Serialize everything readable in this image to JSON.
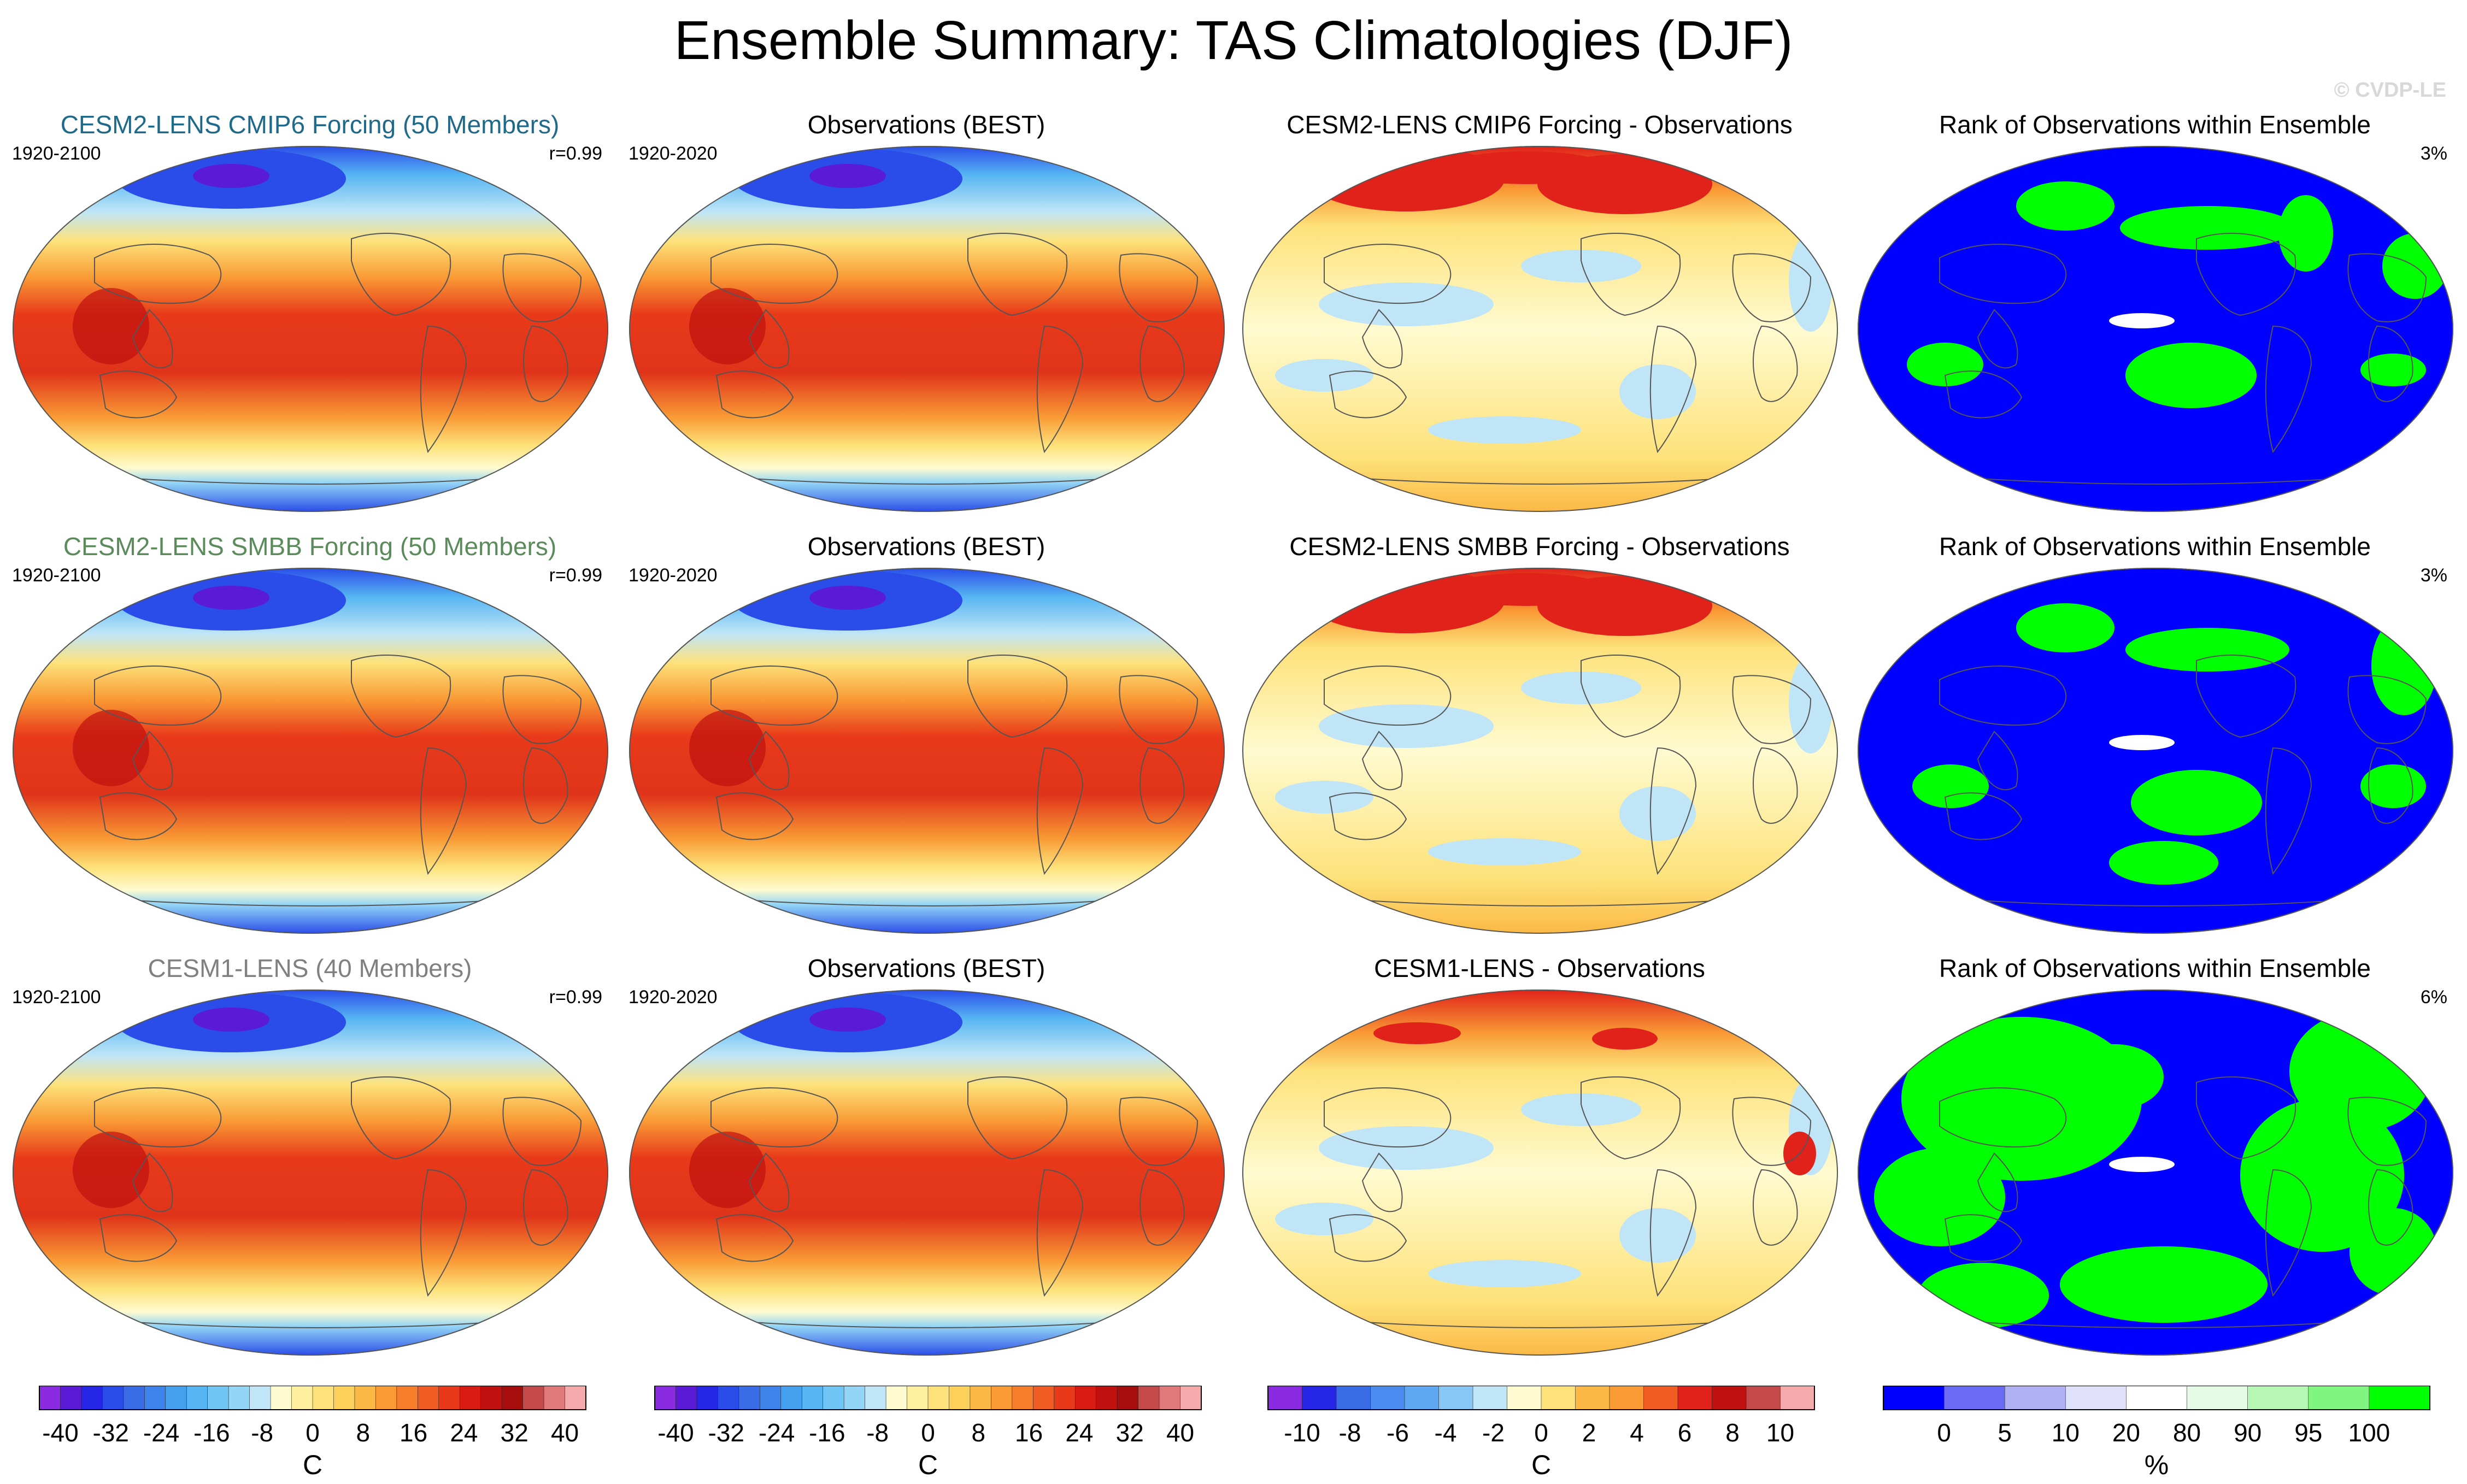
{
  "title": "Ensemble Summary: TAS Climatologies (DJF)",
  "watermark": "© CVDP-LE",
  "rows": [
    {
      "model": {
        "title": "CESM2-LENS CMIP6 Forcing (50 Members)",
        "title_color": "#1f6a8a",
        "period": "1920-2100",
        "corr": "r=0.99"
      },
      "obs": {
        "title": "Observations (BEST)",
        "period": "1920-2020"
      },
      "diff": {
        "title": "CESM2-LENS CMIP6 Forcing - Observations"
      },
      "rank": {
        "title": "Rank of Observations within Ensemble",
        "pct": "3%"
      }
    },
    {
      "model": {
        "title": "CESM2-LENS SMBB Forcing (50 Members)",
        "title_color": "#5b8a5b",
        "period": "1920-2100",
        "corr": "r=0.99"
      },
      "obs": {
        "title": "Observations (BEST)",
        "period": "1920-2020"
      },
      "diff": {
        "title": "CESM2-LENS SMBB Forcing - Observations"
      },
      "rank": {
        "title": "Rank of Observations within Ensemble",
        "pct": "3%"
      }
    },
    {
      "model": {
        "title": "CESM1-LENS (40 Members)",
        "title_color": "#808080",
        "period": "1920-2100",
        "corr": "r=0.99"
      },
      "obs": {
        "title": "Observations (BEST)",
        "period": "1920-2020"
      },
      "diff": {
        "title": "CESM1-LENS - Observations"
      },
      "rank": {
        "title": "Rank of Observations within Ensemble",
        "pct": "6%"
      }
    }
  ],
  "colorbars": [
    {
      "name": "tas",
      "unit": "C",
      "ticks": [
        "-40",
        "-32",
        "-24",
        "-16",
        "-8",
        "0",
        "8",
        "16",
        "24",
        "32",
        "40"
      ],
      "colors": [
        "#8a2be2",
        "#5a1ad6",
        "#2626e6",
        "#2a4ce8",
        "#3a6ce8",
        "#3d85eb",
        "#45a0f0",
        "#56b6f3",
        "#6fc6f4",
        "#93d5f6",
        "#bfe5f7",
        "#fffbd0",
        "#fff0a0",
        "#fde27a",
        "#fcd15a",
        "#fbb845",
        "#f99a35",
        "#f67d2a",
        "#f05c22",
        "#e83a1a",
        "#d81c14",
        "#c11010",
        "#a60d0d",
        "#c44a4a",
        "#e07a7a",
        "#f4aaaa"
      ]
    },
    {
      "name": "tas",
      "unit": "C",
      "ticks": [
        "-40",
        "-32",
        "-24",
        "-16",
        "-8",
        "0",
        "8",
        "16",
        "24",
        "32",
        "40"
      ],
      "colors": [
        "#8a2be2",
        "#5a1ad6",
        "#2626e6",
        "#2a4ce8",
        "#3a6ce8",
        "#3d85eb",
        "#45a0f0",
        "#56b6f3",
        "#6fc6f4",
        "#93d5f6",
        "#bfe5f7",
        "#fffbd0",
        "#fff0a0",
        "#fde27a",
        "#fcd15a",
        "#fbb845",
        "#f99a35",
        "#f67d2a",
        "#f05c22",
        "#e83a1a",
        "#d81c14",
        "#c11010",
        "#a60d0d",
        "#c44a4a",
        "#e07a7a",
        "#f4aaaa"
      ]
    },
    {
      "name": "diff",
      "unit": "C",
      "ticks": [
        "-10",
        "-8",
        "-6",
        "-4",
        "-2",
        "0",
        "2",
        "4",
        "6",
        "8",
        "10"
      ],
      "colors": [
        "#8a2be2",
        "#2626e6",
        "#3a6ce8",
        "#4a8bef",
        "#5ea8f2",
        "#87c6f5",
        "#bfe5f7",
        "#fffbd0",
        "#fde27a",
        "#fbb845",
        "#f99a35",
        "#f05c22",
        "#e0221a",
        "#c11010",
        "#c44a4a",
        "#f4aaaa"
      ]
    },
    {
      "name": "rank",
      "unit": "%",
      "ticks": [
        "0",
        "5",
        "10",
        "20",
        "80",
        "90",
        "95",
        "100"
      ],
      "colors": [
        "#0000ff",
        "#6a6af5",
        "#b0b0f5",
        "#e0e0fb",
        "#ffffff",
        "#e6fbe6",
        "#b6f7b6",
        "#80f580",
        "#00ff00"
      ]
    }
  ],
  "icons": [
    "land-outline-icon"
  ]
}
